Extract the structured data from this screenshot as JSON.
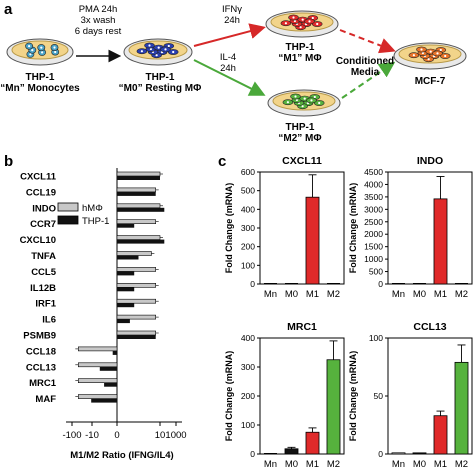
{
  "panel_a": {
    "letter": "a",
    "mn": {
      "l1": "THP-1",
      "l2": "“Mn” Monocytes"
    },
    "m0": {
      "l1": "THP-1",
      "l2": "“M0” Resting MΦ"
    },
    "m1": {
      "l1": "THP-1",
      "l2": "“M1” MΦ"
    },
    "m2": {
      "l1": "THP-1",
      "l2": "“M2” MΦ"
    },
    "mcf7": "MCF-7",
    "step1": [
      "PMA 24h",
      "3x wash",
      "6 days rest"
    ],
    "ifng": [
      "IFNγ",
      "24h"
    ],
    "il4": [
      "IL-4",
      "24h"
    ],
    "cond": [
      "Conditioned",
      "Media"
    ],
    "colors": {
      "mn": "#4aa3c7",
      "m0": "#2b3fb0",
      "m1": "#e02a2a",
      "m2": "#56b23d",
      "mcf7": "#e8742a",
      "dish": "#f2d48a"
    }
  },
  "panel_b": {
    "letter": "b",
    "legend": [
      "hMΦ",
      "THP-1"
    ],
    "xlabel": "M1/M2 Ratio (IFNG/IL4)",
    "ticks": [
      "-100",
      "-10",
      "0",
      "10",
      "1000"
    ],
    "genes": [
      "CXCL11",
      "CCL19",
      "INDO",
      "CCR7",
      "CXCL10",
      "TNFA",
      "CCL5",
      "IL12B",
      "IRF1",
      "IL6",
      "PSMB9",
      "CCL18",
      "CCL13",
      "MRC1",
      "MAF"
    ],
    "hm": [
      10,
      9,
      10,
      9,
      10,
      8,
      9,
      9,
      9,
      9,
      9,
      -9,
      -9,
      -9,
      -9
    ],
    "thp": [
      10,
      9,
      11,
      4,
      11,
      5,
      4,
      4,
      4,
      3,
      9,
      -1,
      -4,
      -3,
      -6
    ]
  },
  "chart_data": [
    {
      "type": "bar",
      "title": "CXCL11",
      "categories": [
        "Mn",
        "M0",
        "M1",
        "M2"
      ],
      "values": [
        0,
        0,
        465,
        0
      ],
      "errors": [
        0,
        0,
        120,
        0
      ],
      "ylabel": "Fold Change (mRNA)",
      "ylim": [
        0,
        600
      ],
      "yticks": [
        "0",
        "100",
        "200",
        "300",
        "400",
        "500",
        "600"
      ]
    },
    {
      "type": "bar",
      "title": "INDO",
      "categories": [
        "Mn",
        "M0",
        "M1",
        "M2"
      ],
      "values": [
        0,
        0,
        3420,
        0
      ],
      "errors": [
        0,
        0,
        900,
        0
      ],
      "ylabel": "Fold Change (mRNA)",
      "ylim": [
        0,
        4500
      ],
      "yticks": [
        "0",
        "500",
        "1000",
        "1500",
        "2000",
        "2500",
        "3000",
        "3500",
        "4000",
        "4500"
      ]
    },
    {
      "type": "bar",
      "title": "MRC1",
      "categories": [
        "Mn",
        "M0",
        "M1",
        "M2"
      ],
      "values": [
        0,
        18,
        75,
        325
      ],
      "errors": [
        0,
        5,
        15,
        65
      ],
      "ylabel": "Fold Change (mRNA)",
      "ylim": [
        0,
        400
      ],
      "yticks": [
        "0",
        "100",
        "200",
        "300",
        "400"
      ]
    },
    {
      "type": "bar",
      "title": "CCL13",
      "categories": [
        "Mn",
        "M0",
        "M1",
        "M2"
      ],
      "values": [
        1,
        1,
        33,
        79
      ],
      "errors": [
        0,
        0,
        4,
        15
      ],
      "ylabel": "Fold Change (mRNA)",
      "ylim": [
        0,
        100
      ],
      "yticks": [
        "0",
        "50",
        "100"
      ]
    }
  ],
  "panel_c": {
    "letter": "c"
  }
}
